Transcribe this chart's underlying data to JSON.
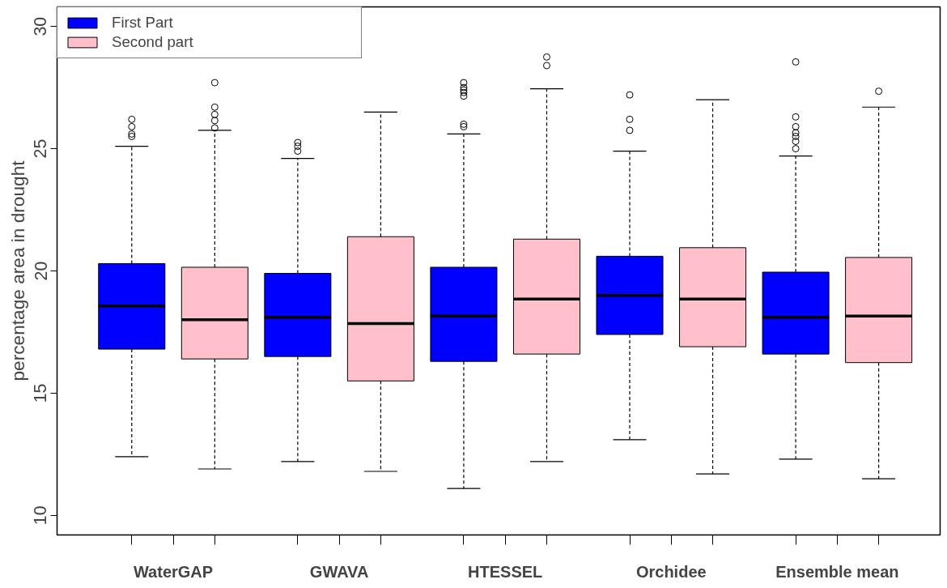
{
  "chart_data": {
    "type": "box",
    "ylabel": "percentage area in drought",
    "categories": [
      "WaterGAP",
      "GWAVA",
      "HTESSEL",
      "Orchidee",
      "Ensemble mean"
    ],
    "ylim": [
      9.2,
      30.8
    ],
    "yticks": [
      10,
      15,
      20,
      25,
      30
    ],
    "grid": false,
    "legend": "top left",
    "series": [
      {
        "name": "First Part",
        "color": "#0000ff",
        "boxes": [
          {
            "low": 12.4,
            "q1": 16.8,
            "median": 18.57,
            "q3": 20.3,
            "high": 25.1,
            "outliers": [
              26.2,
              25.9,
              25.6,
              25.5
            ]
          },
          {
            "low": 12.2,
            "q1": 16.5,
            "median": 18.1,
            "q3": 19.9,
            "high": 24.6,
            "outliers": [
              25.25,
              25.1,
              24.9
            ]
          },
          {
            "low": 11.1,
            "q1": 16.3,
            "median": 18.15,
            "q3": 20.15,
            "high": 25.6,
            "outliers": [
              27.7,
              27.5,
              27.4,
              27.3,
              27.15,
              26.0,
              25.9
            ]
          },
          {
            "low": 13.1,
            "q1": 17.4,
            "median": 19.0,
            "q3": 20.6,
            "high": 24.9,
            "outliers": [
              27.2,
              26.2,
              25.75
            ]
          },
          {
            "low": 12.3,
            "q1": 16.6,
            "median": 18.1,
            "q3": 19.95,
            "high": 24.7,
            "outliers": [
              28.55,
              26.3,
              25.9,
              25.65,
              25.5,
              25.3,
              25.0
            ]
          }
        ]
      },
      {
        "name": "Second part",
        "color": "#ffc0cb",
        "boxes": [
          {
            "low": 11.9,
            "q1": 16.4,
            "median": 18.0,
            "q3": 20.15,
            "high": 25.75,
            "outliers": [
              27.7,
              26.7,
              26.4,
              26.15,
              25.85
            ]
          },
          {
            "low": 11.8,
            "q1": 15.5,
            "median": 17.85,
            "q3": 21.4,
            "high": 26.5
          },
          {
            "low": 12.2,
            "q1": 16.6,
            "median": 18.85,
            "q3": 21.3,
            "high": 27.45,
            "outliers": [
              28.75,
              28.4
            ]
          },
          {
            "low": 11.7,
            "q1": 16.9,
            "median": 18.85,
            "q3": 20.95,
            "high": 27.0
          },
          {
            "low": 11.5,
            "q1": 16.25,
            "median": 18.15,
            "q3": 20.55,
            "high": 26.7,
            "outliers": [
              27.35
            ]
          }
        ]
      }
    ]
  }
}
